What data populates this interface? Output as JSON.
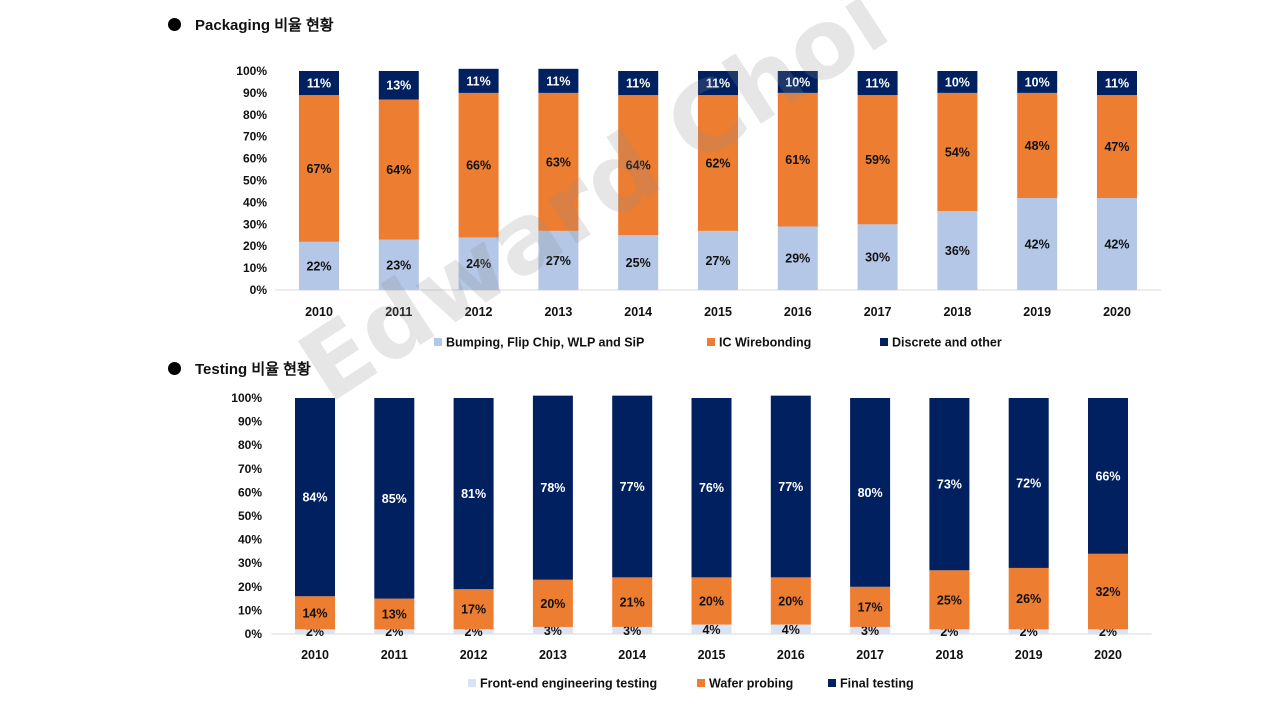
{
  "colors": {
    "light_blue": "#b4c7e7",
    "orange": "#ed7d31",
    "navy": "#002060",
    "very_light_blue": "#dae3f3",
    "axis": "#d9d9d9"
  },
  "watermark": "Edward Choi",
  "chart_data": [
    {
      "type": "bar",
      "stacked": true,
      "title": "Packaging 비율 현황",
      "categories": [
        "2010",
        "2011",
        "2012",
        "2013",
        "2014",
        "2015",
        "2016",
        "2017",
        "2018",
        "2019",
        "2020"
      ],
      "yticks": [
        "0%",
        "10%",
        "20%",
        "30%",
        "40%",
        "50%",
        "60%",
        "70%",
        "80%",
        "90%",
        "100%"
      ],
      "ylim": [
        0,
        100
      ],
      "legend_position": "bottom",
      "series": [
        {
          "name": "Bumping, Flip Chip, WLP and SiP",
          "color": "#b4c7e7",
          "label_color": "#111111",
          "values": [
            22,
            23,
            24,
            27,
            25,
            27,
            29,
            30,
            36,
            42,
            42
          ]
        },
        {
          "name": "IC Wirebonding",
          "color": "#ed7d31",
          "label_color": "#111111",
          "values": [
            67,
            64,
            66,
            63,
            64,
            62,
            61,
            59,
            54,
            48,
            47
          ]
        },
        {
          "name": "Discrete and other",
          "color": "#002060",
          "label_color": "#ffffff",
          "values": [
            11,
            13,
            11,
            11,
            11,
            11,
            10,
            11,
            10,
            10,
            11
          ]
        }
      ]
    },
    {
      "type": "bar",
      "stacked": true,
      "title": "Testing 비율 현황",
      "categories": [
        "2010",
        "2011",
        "2012",
        "2013",
        "2014",
        "2015",
        "2016",
        "2017",
        "2018",
        "2019",
        "2020"
      ],
      "yticks": [
        "0%",
        "10%",
        "20%",
        "30%",
        "40%",
        "50%",
        "60%",
        "70%",
        "80%",
        "90%",
        "100%"
      ],
      "ylim": [
        0,
        100
      ],
      "legend_position": "bottom",
      "series": [
        {
          "name": "Front-end engineering testing",
          "color": "#dae3f3",
          "label_color": "#111111",
          "values": [
            2,
            2,
            2,
            3,
            3,
            4,
            4,
            3,
            2,
            2,
            2
          ]
        },
        {
          "name": "Wafer probing",
          "color": "#ed7d31",
          "label_color": "#111111",
          "values": [
            14,
            13,
            17,
            20,
            21,
            20,
            20,
            17,
            25,
            26,
            32
          ]
        },
        {
          "name": "Final testing",
          "color": "#002060",
          "label_color": "#ffffff",
          "values": [
            84,
            85,
            81,
            78,
            77,
            76,
            77,
            80,
            73,
            72,
            66
          ]
        }
      ]
    }
  ]
}
